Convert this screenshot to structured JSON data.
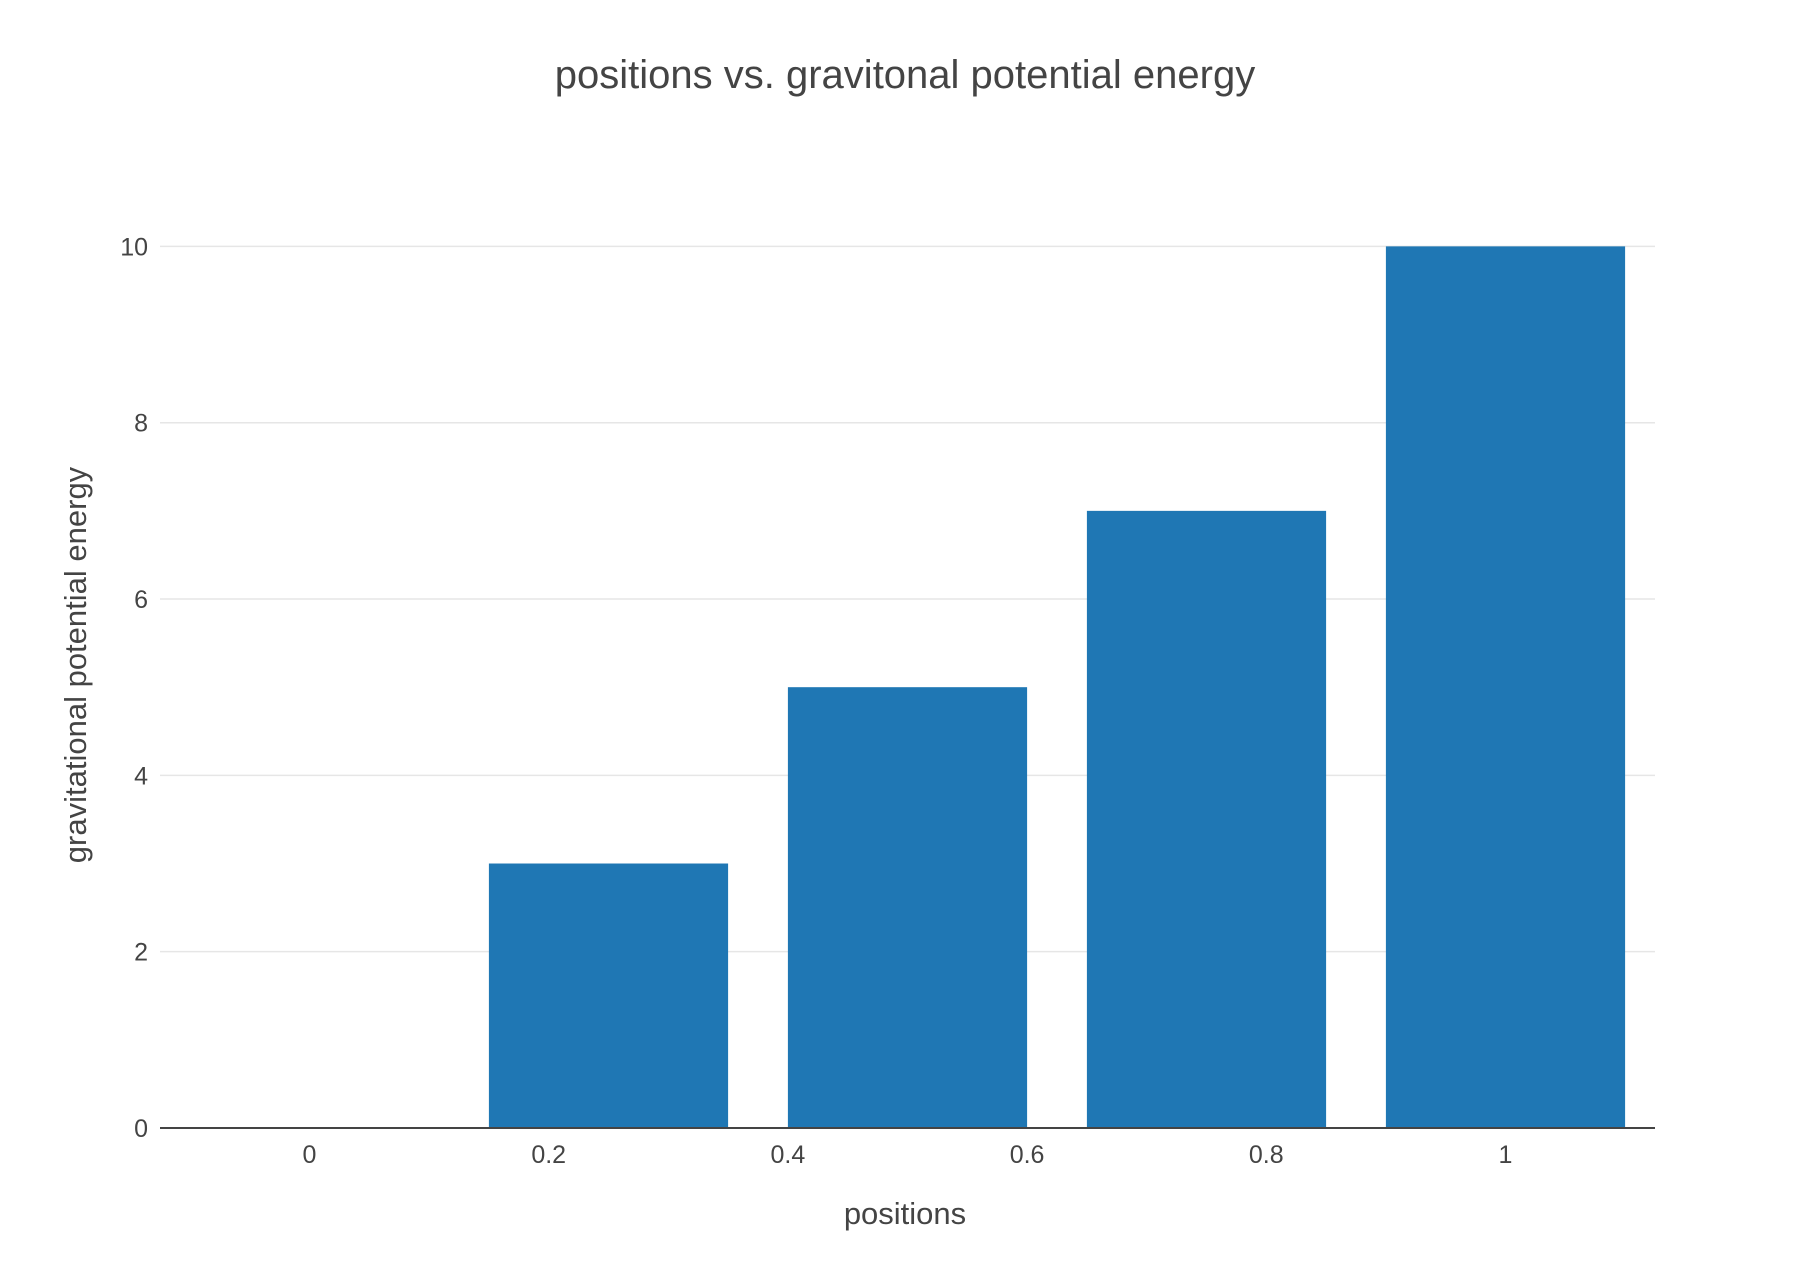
{
  "chart_data": {
    "type": "bar",
    "title": "positions vs. gravitonal potential energy",
    "xlabel": "positions",
    "ylabel": "gravitational potential energy",
    "x": [
      0,
      0.25,
      0.5,
      0.75,
      1
    ],
    "values": [
      0,
      3,
      5,
      7,
      10
    ],
    "xticks": [
      "0",
      "0.2",
      "0.4",
      "0.6",
      "0.8",
      "1"
    ],
    "xtick_values": [
      0,
      0.2,
      0.4,
      0.6,
      0.8,
      1
    ],
    "yticks": [
      "0",
      "2",
      "4",
      "6",
      "8",
      "10"
    ],
    "ytick_values": [
      0,
      2,
      4,
      6,
      8,
      10
    ],
    "xlim": [
      -0.125,
      1.125
    ],
    "ylim": [
      0,
      10.526
    ],
    "bar_width": 0.2,
    "grid": true,
    "bar_color": "#1f77b4"
  }
}
